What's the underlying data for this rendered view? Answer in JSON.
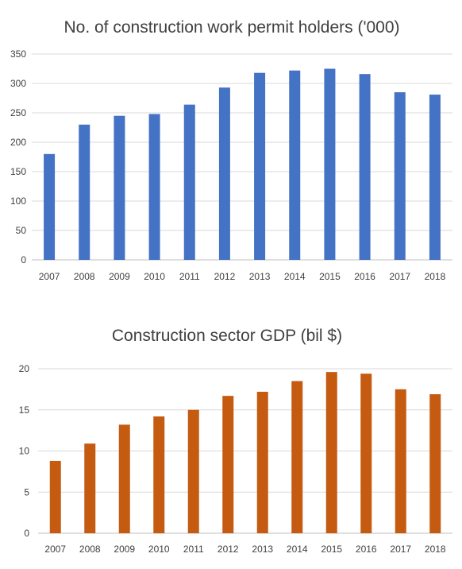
{
  "chart_data": [
    {
      "type": "bar",
      "title": "No. of construction work permit holders ('000)",
      "categories": [
        "2007",
        "2008",
        "2009",
        "2010",
        "2011",
        "2012",
        "2013",
        "2014",
        "2015",
        "2016",
        "2017",
        "2018"
      ],
      "values": [
        180,
        230,
        245,
        248,
        264,
        293,
        318,
        322,
        325,
        316,
        285,
        281
      ],
      "ylim": [
        0,
        350
      ],
      "yticks": [
        0,
        50,
        100,
        150,
        200,
        250,
        300,
        350
      ],
      "grid": true,
      "color": "#4472C4"
    },
    {
      "type": "bar",
      "title": "Construction sector GDP (bil $)",
      "categories": [
        "2007",
        "2008",
        "2009",
        "2010",
        "2011",
        "2012",
        "2013",
        "2014",
        "2015",
        "2016",
        "2017",
        "2018"
      ],
      "values": [
        8.8,
        10.9,
        13.2,
        14.2,
        15.0,
        16.7,
        17.2,
        18.5,
        19.6,
        19.4,
        17.5,
        16.9
      ],
      "ylim": [
        0,
        20
      ],
      "yticks": [
        0,
        5,
        10,
        15,
        20
      ],
      "grid": true,
      "color": "#C55A11"
    }
  ]
}
